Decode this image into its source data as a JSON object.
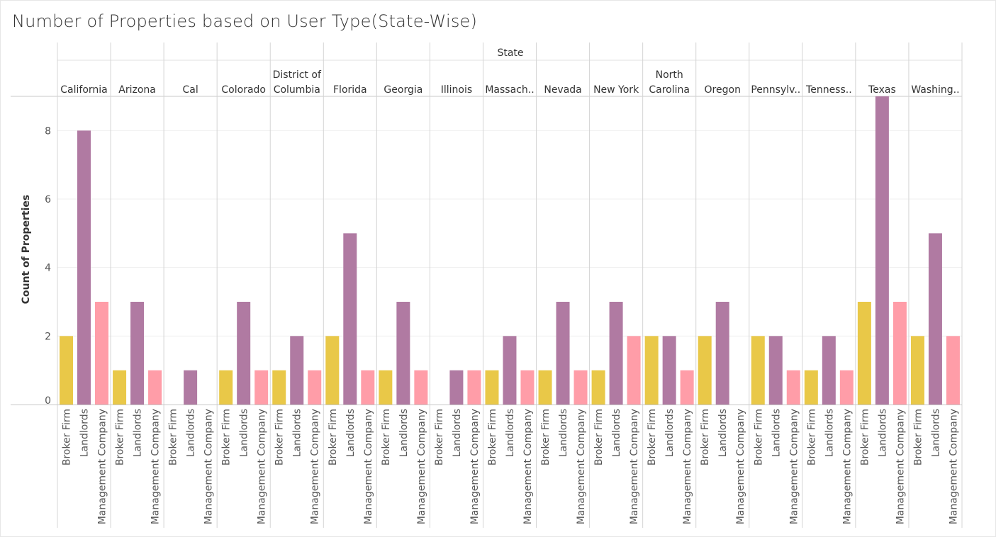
{
  "chart_data": {
    "type": "bar",
    "title": "Number of Properties based on User Type(State-Wise)",
    "header_label": "State",
    "ylabel": "Count of Properties",
    "ylim": [
      0,
      9
    ],
    "yticks": [
      0,
      2,
      4,
      6,
      8
    ],
    "grid": true,
    "categories": [
      "Broker Firm",
      "Landlords",
      "Management Company"
    ],
    "colors": {
      "Broker Firm": "#e9c848",
      "Landlords": "#b07aa2",
      "Management Company": "#ff9da8"
    },
    "panels": [
      {
        "state": "California",
        "values": [
          2,
          8,
          3
        ]
      },
      {
        "state": "Arizona",
        "values": [
          1,
          3,
          1
        ]
      },
      {
        "state": "Cal",
        "values": [
          null,
          1,
          null
        ]
      },
      {
        "state": "Colorado",
        "values": [
          1,
          3,
          1
        ]
      },
      {
        "state": "District of Columbia",
        "values": [
          1,
          2,
          1
        ]
      },
      {
        "state": "Florida",
        "values": [
          2,
          5,
          1
        ]
      },
      {
        "state": "Georgia",
        "values": [
          1,
          3,
          1
        ]
      },
      {
        "state": "Illinois",
        "values": [
          null,
          1,
          1
        ]
      },
      {
        "state": "Massach..",
        "values": [
          1,
          2,
          1
        ]
      },
      {
        "state": "Nevada",
        "values": [
          1,
          3,
          1
        ]
      },
      {
        "state": "New York",
        "values": [
          1,
          3,
          2
        ]
      },
      {
        "state": "North Carolina",
        "values": [
          2,
          2,
          1
        ]
      },
      {
        "state": "Oregon",
        "values": [
          2,
          3,
          null
        ]
      },
      {
        "state": "Pennsylv..",
        "values": [
          2,
          2,
          1
        ]
      },
      {
        "state": "Tenness..",
        "values": [
          1,
          2,
          1
        ]
      },
      {
        "state": "Texas",
        "values": [
          3,
          9,
          3
        ]
      },
      {
        "state": "Washing..",
        "values": [
          2,
          5,
          2
        ]
      }
    ]
  }
}
